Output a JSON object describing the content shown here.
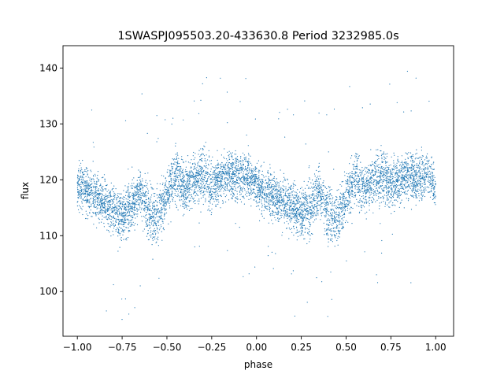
{
  "chart_data": {
    "type": "scatter",
    "title": "1SWASPJ095503.20-433630.8 Period 3232985.0s",
    "xlabel": "phase",
    "ylabel": "flux",
    "xlim": [
      -1.08,
      1.1
    ],
    "ylim": [
      92,
      144
    ],
    "xticks": [
      -1.0,
      -0.75,
      -0.5,
      -0.25,
      0.0,
      0.25,
      0.5,
      0.75,
      1.0
    ],
    "xtick_labels": [
      "−1.00",
      "−0.75",
      "−0.50",
      "−0.25",
      "0.00",
      "0.25",
      "0.50",
      "0.75",
      "1.00"
    ],
    "yticks": [
      100,
      110,
      120,
      130,
      140
    ],
    "ytick_labels": [
      "100",
      "110",
      "120",
      "130",
      "140"
    ],
    "grid": false,
    "legend": "none",
    "point_color": "#1f77b4",
    "series": [
      {
        "x": [
          -1.0,
          -0.95,
          -0.9,
          -0.85,
          -0.8,
          -0.75,
          -0.7,
          -0.65,
          -0.6,
          -0.55,
          -0.5,
          -0.45,
          -0.4,
          -0.35,
          -0.3,
          -0.25,
          -0.2,
          -0.15,
          -0.1,
          -0.05,
          0.0,
          0.05,
          0.1,
          0.15,
          0.2,
          0.25,
          0.3,
          0.35,
          0.4,
          0.45,
          0.5,
          0.55,
          0.6,
          0.65,
          0.7,
          0.75,
          0.8,
          0.85,
          0.9,
          0.95,
          1.0
        ],
        "y": [
          119,
          118,
          117,
          116,
          115,
          114,
          115,
          118,
          114,
          113,
          117,
          121,
          118,
          120,
          121,
          119,
          120,
          121,
          120,
          121,
          119,
          118,
          117,
          116,
          115,
          114,
          115,
          118,
          114,
          113,
          117,
          121,
          118,
          120,
          121,
          119,
          120,
          121,
          120,
          121,
          119
        ],
        "spread": [
          4,
          4,
          4,
          4,
          4,
          4,
          5,
          4,
          5,
          5,
          4,
          5,
          4,
          4,
          5,
          4,
          4,
          4,
          4,
          4,
          4,
          4,
          4,
          4,
          4,
          4,
          5,
          4,
          5,
          5,
          4,
          5,
          4,
          4,
          5,
          4,
          4,
          4,
          4,
          4,
          4
        ]
      }
    ]
  }
}
